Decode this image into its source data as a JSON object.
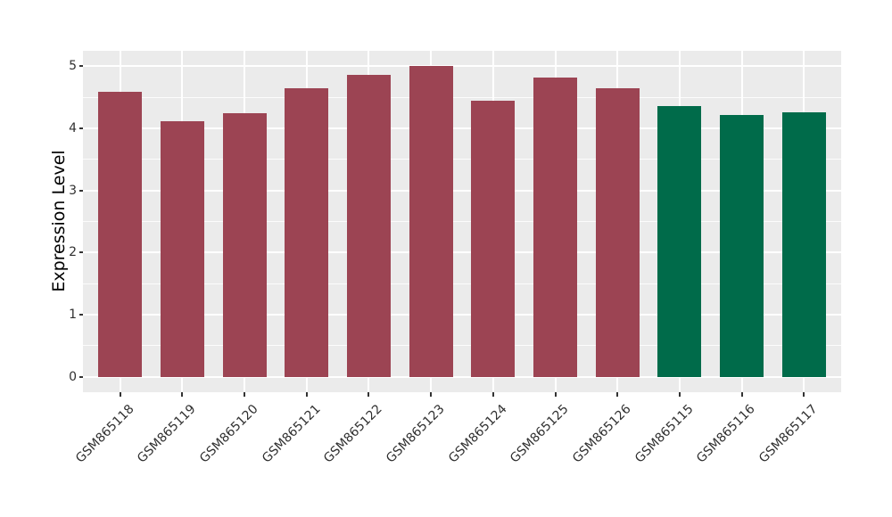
{
  "chart_data": {
    "type": "bar",
    "title": "",
    "xlabel": "",
    "ylabel": "Expression Level",
    "categories": [
      "GSM865118",
      "GSM865119",
      "GSM865120",
      "GSM865121",
      "GSM865122",
      "GSM865123",
      "GSM865124",
      "GSM865125",
      "GSM865126",
      "GSM865115",
      "GSM865116",
      "GSM865117"
    ],
    "values": [
      4.59,
      4.11,
      4.25,
      4.65,
      4.86,
      5.0,
      4.45,
      4.82,
      4.64,
      4.36,
      4.21,
      4.26
    ],
    "groups": [
      "maroon",
      "maroon",
      "maroon",
      "maroon",
      "maroon",
      "maroon",
      "maroon",
      "maroon",
      "maroon",
      "green",
      "green",
      "green"
    ],
    "group_colors": {
      "maroon": "#9C4453",
      "green": "#006B4A"
    },
    "ylim": [
      0,
      5
    ],
    "yticks": [
      "0",
      "1",
      "2",
      "3",
      "4",
      "5"
    ],
    "minor_yticks": [
      0.5,
      1.5,
      2.5,
      3.5,
      4.5
    ],
    "y_expansion": 0.05,
    "bar_width_fraction": 0.7,
    "x_tick_rotation_deg": 45,
    "grid": true,
    "legend_position": "none",
    "style": {
      "panel_background": "#EBEBEB",
      "grid_color": "#FFFFFF",
      "tick_mark_color": "#333333",
      "tick_label_color": "#303030",
      "axis_title_color": "#000000",
      "figure_background": "#FFFFFF"
    }
  }
}
